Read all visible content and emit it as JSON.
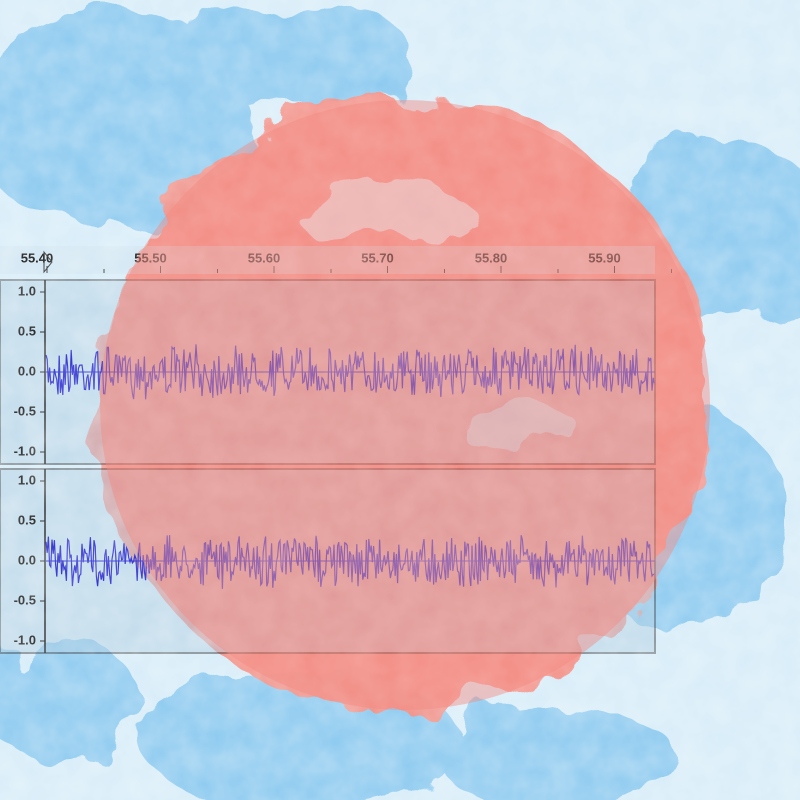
{
  "timeline": {
    "labels": [
      "55.40",
      "55.50",
      "55.60",
      "55.70",
      "55.80",
      "55.90"
    ]
  },
  "tracks": [
    {
      "scale": [
        "1.0",
        "0.5",
        "0.0",
        "-0.5",
        "-1.0"
      ]
    },
    {
      "scale": [
        "1.0",
        "0.5",
        "0.0",
        "-0.5",
        "-1.0"
      ]
    }
  ]
}
